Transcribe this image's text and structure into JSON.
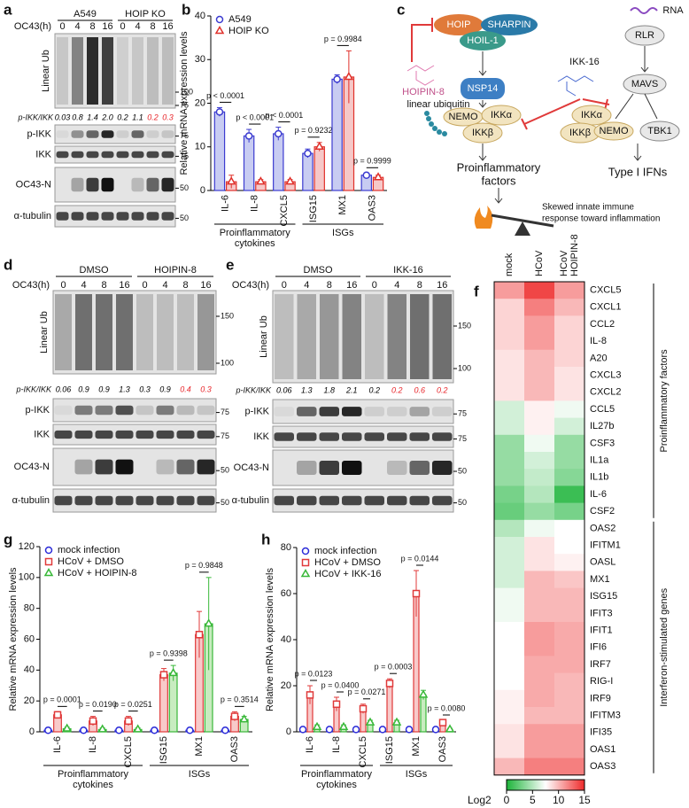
{
  "figure": {
    "a": {
      "label": "a",
      "groups": [
        "A549",
        "HOIP KO"
      ],
      "time_label": "OC43(h)",
      "times": [
        "0",
        "4",
        "8",
        "16",
        "0",
        "4",
        "8",
        "16"
      ],
      "ub_label": "Linear Ub",
      "ub_markers": [
        "100",
        "75"
      ],
      "ratio_label": "p-IKK/IKK",
      "ratios": [
        "0.03",
        "0.8",
        "1.4",
        "2.0",
        "0.2",
        "1.1",
        "0.2",
        "0.3"
      ],
      "ratio_colors": [
        "#000",
        "#000",
        "#000",
        "#000",
        "#000",
        "#000",
        "#e8262b",
        "#e8262b"
      ],
      "blots": [
        {
          "name": "p-IKK",
          "marker": "75"
        },
        {
          "name": "IKK",
          "marker": "75"
        },
        {
          "name": "OC43-N",
          "marker": "50"
        },
        {
          "name": "α-tubulin",
          "marker": "50"
        }
      ]
    },
    "d": {
      "label": "d",
      "groups": [
        "DMSO",
        "HOIPIN-8"
      ],
      "time_label": "OC43(h)",
      "times": [
        "0",
        "4",
        "8",
        "16",
        "0",
        "4",
        "8",
        "16"
      ],
      "ub_label": "Linear Ub",
      "ub_markers": [
        "150",
        "100"
      ],
      "ratio_label": "p-IKK/IKK",
      "ratios": [
        "0.06",
        "0.9",
        "0.9",
        "1.3",
        "0.3",
        "0.9",
        "0.4",
        "0.3"
      ],
      "ratio_colors": [
        "#000",
        "#000",
        "#000",
        "#000",
        "#000",
        "#000",
        "#e8262b",
        "#e8262b"
      ],
      "blots": [
        {
          "name": "p-IKK",
          "marker": "75"
        },
        {
          "name": "IKK",
          "marker": "75"
        },
        {
          "name": "OC43-N",
          "marker": "50"
        },
        {
          "name": "α-tubulin",
          "marker": "50"
        }
      ]
    },
    "e": {
      "label": "e",
      "groups": [
        "DMSO",
        "IKK-16"
      ],
      "time_label": "OC43(h)",
      "times": [
        "0",
        "4",
        "8",
        "16",
        "0",
        "4",
        "8",
        "16"
      ],
      "ub_label": "Linear Ub",
      "ub_markers": [
        "150",
        "100"
      ],
      "ratio_label": "p-IKK/IKK",
      "ratios": [
        "0.06",
        "1.3",
        "1.8",
        "2.1",
        "0.2",
        "0.2",
        "0.6",
        "0.2"
      ],
      "ratio_colors": [
        "#000",
        "#000",
        "#000",
        "#000",
        "#000",
        "#e8262b",
        "#e8262b",
        "#e8262b"
      ],
      "blots": [
        {
          "name": "p-IKK",
          "marker": "75"
        },
        {
          "name": "IKK",
          "marker": "75"
        },
        {
          "name": "OC43-N",
          "marker": "50"
        },
        {
          "name": "α-tubulin",
          "marker": "50"
        }
      ]
    }
  },
  "charts": {
    "b": {
      "type": "bar",
      "label": "b",
      "y_label": "Relative mRNA expression levels",
      "categories": [
        "IL-6",
        "IL-8",
        "CXCL5",
        "ISG15",
        "MX1",
        "OAS3"
      ],
      "series": [
        {
          "name": "A549",
          "color": "#3b3bd0",
          "fill": "#c8ccf2",
          "marker": "circle",
          "values": [
            18,
            12.5,
            13,
            8.5,
            25.5,
            3.5
          ],
          "errors": [
            1,
            1.5,
            1.5,
            1,
            1,
            0.5
          ]
        },
        {
          "name": "HOIP KO",
          "color": "#e0302a",
          "fill": "#f6c8c8",
          "marker": "triangle",
          "values": [
            2,
            2,
            2,
            10,
            26,
            3
          ],
          "errors": [
            1.5,
            0.5,
            0.5,
            1,
            6,
            0.5
          ]
        }
      ],
      "ylim": [
        0,
        40
      ],
      "yticks": [
        0,
        10,
        20,
        30,
        40
      ],
      "p_values": [
        "p < 0.0001",
        "p < 0.0001",
        "p < 0.0001",
        "p = 0.9232",
        "p = 0.9984",
        "p = 0.9999"
      ],
      "group_labels": [
        [
          "Proinflammatory",
          "cytokines"
        ],
        [
          "ISGs"
        ]
      ],
      "legend": "top-left"
    },
    "g": {
      "type": "bar",
      "label": "g",
      "y_label": "Relative mRNA expression levels",
      "categories": [
        "IL-6",
        "IL-8",
        "CXCL5",
        "ISG15",
        "MX1",
        "OAS3"
      ],
      "series": [
        {
          "name": "mock infection",
          "color": "#2b2bd8",
          "fill": "none",
          "marker": "circle",
          "values": [
            1,
            1,
            1,
            1,
            1,
            1
          ],
          "errors": [
            0.3,
            0.3,
            0.3,
            0.3,
            0.3,
            0.3
          ]
        },
        {
          "name": "HCoV + DMSO",
          "color": "#e03a3a",
          "fill": "#f8caca",
          "marker": "square",
          "values": [
            11,
            7,
            7,
            37,
            63,
            10
          ],
          "errors": [
            2,
            3,
            3,
            4,
            15,
            3
          ]
        },
        {
          "name": "HCoV + HOIPIN-8",
          "color": "#38b838",
          "fill": "#c8ecc0",
          "marker": "triangle",
          "values": [
            2,
            1.5,
            1.5,
            38,
            70,
            8
          ],
          "errors": [
            1,
            1,
            1,
            5,
            30,
            2
          ]
        }
      ],
      "ylim": [
        0,
        120
      ],
      "yticks": [
        0,
        20,
        40,
        60,
        80,
        100,
        120
      ],
      "p_values": [
        "p = 0.0001",
        "p = 0.0190",
        "p = 0.0251",
        "p = 0.9398",
        "p = 0.9848",
        "p = 0.3514"
      ],
      "group_labels": [
        [
          "Proinflammatory",
          "cytokines"
        ],
        [
          "ISGs"
        ]
      ],
      "legend": "top-left"
    },
    "h": {
      "type": "bar",
      "label": "h",
      "y_label": "Relative mRNA expression levels",
      "categories": [
        "IL-6",
        "IL-8",
        "CXCL5",
        "ISG15",
        "MX1",
        "OAS3"
      ],
      "series": [
        {
          "name": "mock infection",
          "color": "#2b2bd8",
          "fill": "none",
          "marker": "circle",
          "values": [
            1,
            1,
            1,
            1,
            1,
            1
          ],
          "errors": [
            0.3,
            0.3,
            0.3,
            0.3,
            0.3,
            0.3
          ]
        },
        {
          "name": "HCoV + DMSO",
          "color": "#e03a3a",
          "fill": "#f8caca",
          "marker": "square",
          "values": [
            16,
            12,
            10,
            21,
            60,
            4
          ],
          "errors": [
            4,
            3,
            2,
            2,
            10,
            1
          ]
        },
        {
          "name": "HCoV + IKK-16",
          "color": "#38b838",
          "fill": "#c8ecc0",
          "marker": "triangle",
          "values": [
            2,
            2,
            4,
            4,
            16,
            1
          ],
          "errors": [
            1,
            1,
            1,
            1,
            2,
            0.5
          ]
        }
      ],
      "ylim": [
        0,
        80
      ],
      "yticks": [
        0,
        20,
        40,
        60,
        80
      ],
      "p_values": [
        "p = 0.0123",
        "p = 0.0400",
        "p = 0.0271",
        "p = 0.0003",
        "p = 0.0144",
        "p = 0.0080"
      ],
      "group_labels": [
        [
          "Proinflammatory",
          "cytokines"
        ],
        [
          "ISGs"
        ]
      ],
      "legend": "top-left"
    }
  },
  "heatmap": {
    "label": "f",
    "columns": [
      [
        "mock"
      ],
      [
        "HCoV"
      ],
      [
        "HCoV",
        "HOIPIN-8"
      ]
    ],
    "groups": [
      {
        "label": "Proinflammatory factors",
        "rows": [
          "CXCL5",
          "CXCL1",
          "CCL2",
          "IL-8",
          "A20",
          "CXCL3",
          "CXCL2",
          "CCL5",
          "IL27b",
          "CSF3",
          "IL1a",
          "IL1b",
          "IL-6",
          "CSF2"
        ],
        "values": [
          [
            11,
            14,
            11
          ],
          [
            9,
            12,
            10
          ],
          [
            9,
            11,
            9
          ],
          [
            9,
            11,
            9
          ],
          [
            8.5,
            10,
            9
          ],
          [
            8.5,
            10,
            8.5
          ],
          [
            8.5,
            10,
            8.5
          ],
          [
            6,
            8,
            7
          ],
          [
            6,
            8,
            6
          ],
          [
            4,
            7,
            4
          ],
          [
            4,
            6,
            4
          ],
          [
            4,
            5.5,
            3.5
          ],
          [
            3,
            5,
            1
          ],
          [
            2.5,
            4,
            3
          ]
        ]
      },
      {
        "label": "Interferon-stimulated genes",
        "rows": [
          "OAS2",
          "IFITM1",
          "OASL",
          "MX1",
          "ISG15",
          "IFIT3",
          "IFIT1",
          "IFI6",
          "IRF7",
          "RIG-I",
          "IRF9",
          "IFITM3",
          "IFI35",
          "OAS1",
          "OAS3"
        ],
        "values": [
          [
            5,
            7,
            7.5
          ],
          [
            6,
            8.5,
            7.5
          ],
          [
            6,
            8.5,
            8
          ],
          [
            6,
            10,
            9.5
          ],
          [
            7,
            10,
            10
          ],
          [
            7,
            10,
            10
          ],
          [
            7.5,
            11,
            10.5
          ],
          [
            7.5,
            11,
            10.5
          ],
          [
            7.5,
            10.5,
            10.5
          ],
          [
            7.5,
            10.5,
            10
          ],
          [
            8,
            10.5,
            10
          ],
          [
            8,
            10,
            10
          ],
          [
            8.5,
            11,
            11
          ],
          [
            8.5,
            11,
            11
          ],
          [
            10,
            12,
            12
          ]
        ]
      }
    ],
    "scale_label": "Log2",
    "scale_lim": [
      0,
      15
    ],
    "scale_ticks": [
      0,
      5,
      10,
      15
    ],
    "colors": [
      "#1db43a",
      "#ffffff",
      "#ee2a2a"
    ]
  },
  "diagram": {
    "label": "c",
    "hoip": "HOIP",
    "sharpin": "SHARPIN",
    "hoil": "HOIL-1",
    "hoipin": "HOIPIN-8",
    "nsp14": "NSP14",
    "linear_ub": "linear ubiquitin",
    "nemo": "NEMO",
    "ikka": "IKKα",
    "ikkb": "IKKβ",
    "ikk16": "IKK-16",
    "rna": "RNA",
    "rlr": "RLR",
    "mavs": "MAVS",
    "ikka2": "IKKα",
    "ikkb2": "IKKβ",
    "nemo2": "NEMO",
    "tbk1": "TBK1",
    "proinflammatory": [
      "Proinflammatory",
      "factors"
    ],
    "ifn": "Type I IFNs",
    "skewed": [
      "Skewed innate immune",
      "response toward inflammation"
    ]
  }
}
